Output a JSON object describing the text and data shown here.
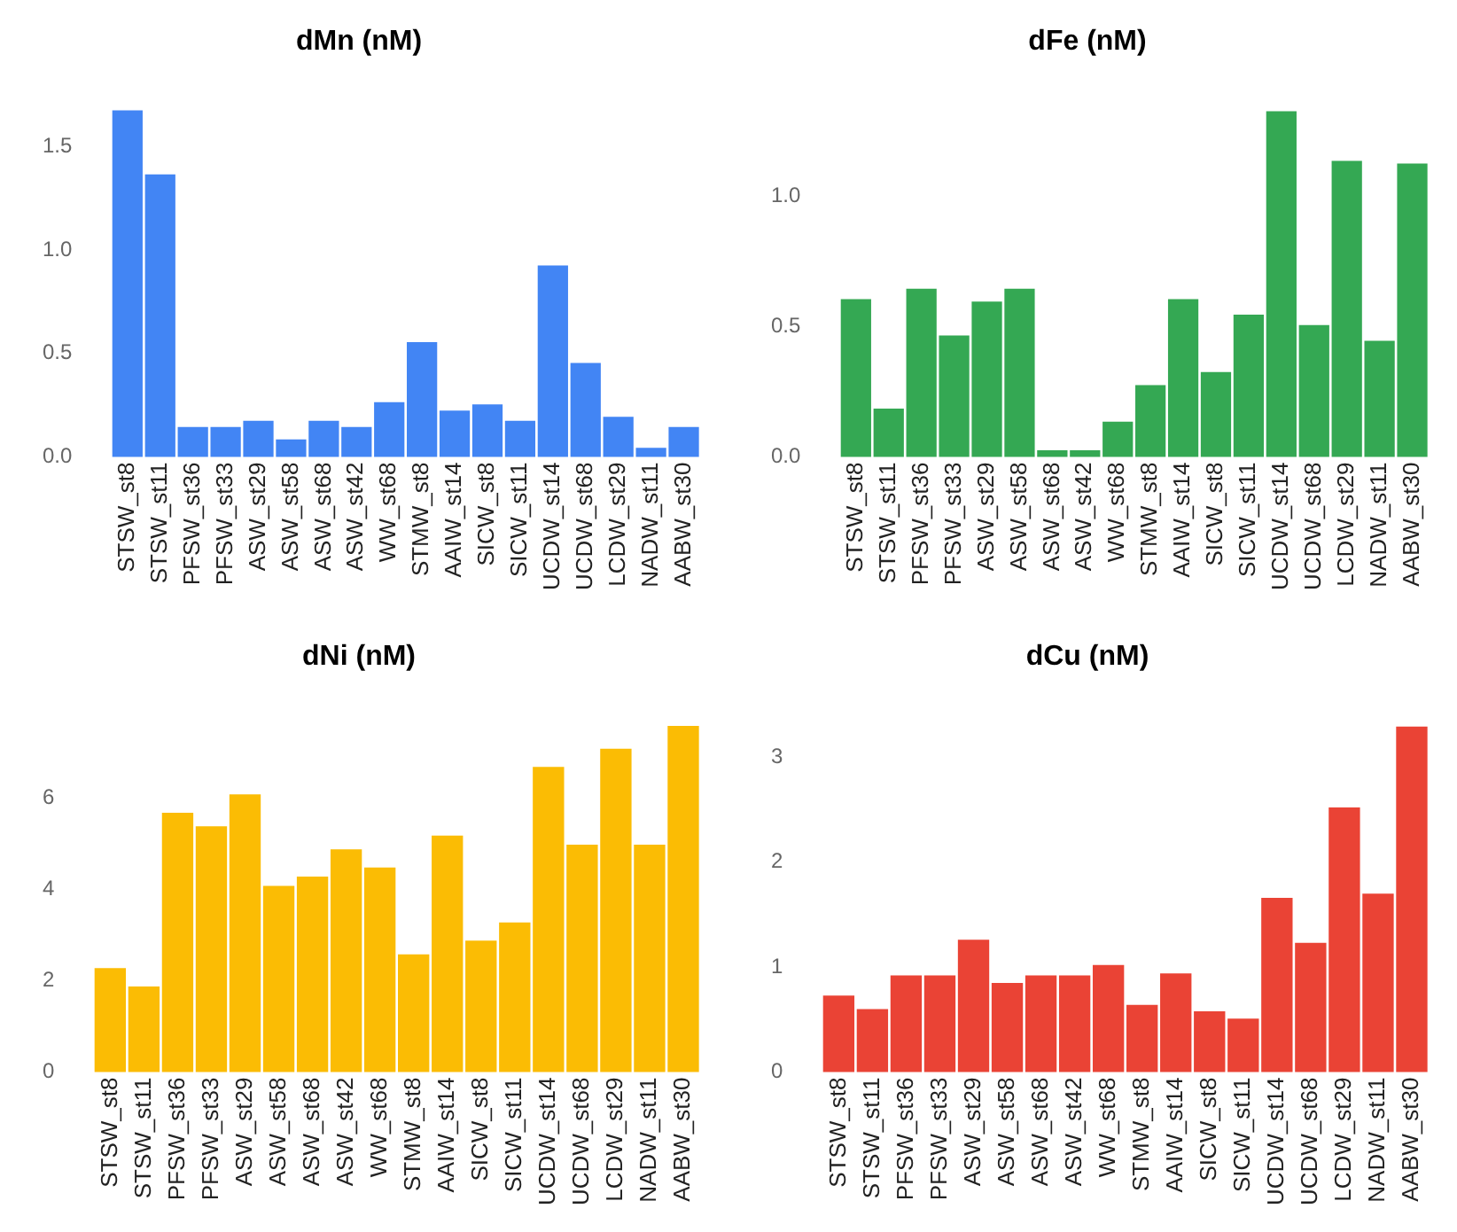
{
  "chart_data": [
    {
      "type": "bar",
      "title": "dMn (nM)",
      "categories": [
        "STSW_st8",
        "STSW_st11",
        "PFSW_st36",
        "PFSW_st33",
        "ASW_st29",
        "ASW_st58",
        "ASW_st68",
        "ASW_st42",
        "WW_st68",
        "STMW_st8",
        "AAIW_st14",
        "SICW_st8",
        "SICW_st11",
        "UCDW_st14",
        "UCDW_st68",
        "LCDW_st29",
        "NADW_st11",
        "AABW_st30"
      ],
      "values": [
        1.68,
        1.37,
        0.15,
        0.15,
        0.18,
        0.09,
        0.18,
        0.15,
        0.27,
        0.56,
        0.23,
        0.26,
        0.18,
        0.93,
        0.46,
        0.2,
        0.05,
        0.15
      ],
      "color": "#4285f4",
      "ylim": [
        0,
        1.7
      ],
      "yticks": [
        {
          "value": 0,
          "label": "0.0"
        },
        1.5,
        {
          "value": 0.5,
          "label": "0.5"
        },
        {
          "value": 1,
          "label": "1.0"
        }
      ],
      "legend": false
    },
    {
      "type": "bar",
      "title": "dFe (nM)",
      "categories": [
        "STSW_st8",
        "STSW_st11",
        "PFSW_st36",
        "PFSW_st33",
        "ASW_st29",
        "ASW_st58",
        "ASW_st68",
        "ASW_st42",
        "WW_st68",
        "STMW_st8",
        "AAIW_st14",
        "SICW_st8",
        "SICW_st11",
        "UCDW_st14",
        "UCDW_st68",
        "LCDW_st29",
        "NADW_st11",
        "AABW_st30"
      ],
      "values": [
        0.61,
        0.19,
        0.65,
        0.47,
        0.6,
        0.65,
        0.03,
        0.03,
        0.14,
        0.28,
        0.61,
        0.33,
        0.55,
        1.33,
        0.51,
        1.14,
        0.45,
        1.13
      ],
      "color": "#34a853",
      "ylim": [
        0,
        1.35
      ],
      "yticks": [
        {
          "value": 0,
          "label": "0.0"
        },
        {
          "value": 0.5,
          "label": "0.5"
        },
        {
          "value": 1,
          "label": "1.0"
        }
      ],
      "legend": false
    },
    {
      "type": "bar",
      "title": "dNi (nM)",
      "categories": [
        "STSW_st8",
        "STSW_st11",
        "PFSW_st36",
        "PFSW_st33",
        "ASW_st29",
        "ASW_st58",
        "ASW_st68",
        "ASW_st42",
        "WW_st68",
        "STMW_st8",
        "AAIW_st14",
        "SICW_st8",
        "SICW_st11",
        "UCDW_st14",
        "UCDW_st68",
        "LCDW_st29",
        "NADW_st11",
        "AABW_st30"
      ],
      "values": [
        2.3,
        1.9,
        5.7,
        5.4,
        6.1,
        4.1,
        4.3,
        4.9,
        4.5,
        2.6,
        5.2,
        2.9,
        3.3,
        6.7,
        5,
        7.1,
        5,
        7.6
      ],
      "color": "#fbbc04",
      "ylim": [
        0,
        7.7
      ],
      "yticks": [
        0,
        2,
        4,
        6
      ],
      "legend": false
    },
    {
      "type": "bar",
      "title": "dCu (nM)",
      "categories": [
        "STSW_st8",
        "STSW_st11",
        "PFSW_st36",
        "PFSW_st33",
        "ASW_st29",
        "ASW_st58",
        "ASW_st68",
        "ASW_st42",
        "WW_st68",
        "STMW_st8",
        "AAIW_st14",
        "SICW_st8",
        "SICW_st11",
        "UCDW_st14",
        "UCDW_st68",
        "LCDW_st29",
        "NADW_st11",
        "AABW_st30"
      ],
      "values": [
        0.74,
        0.61,
        0.93,
        0.93,
        1.27,
        0.86,
        0.93,
        0.93,
        1.03,
        0.65,
        0.95,
        0.59,
        0.52,
        1.67,
        1.24,
        2.53,
        1.71,
        3.3
      ],
      "color": "#ea4335",
      "ylim": [
        0,
        3.35
      ],
      "yticks": [
        0,
        1,
        2,
        3
      ],
      "legend": false
    }
  ]
}
